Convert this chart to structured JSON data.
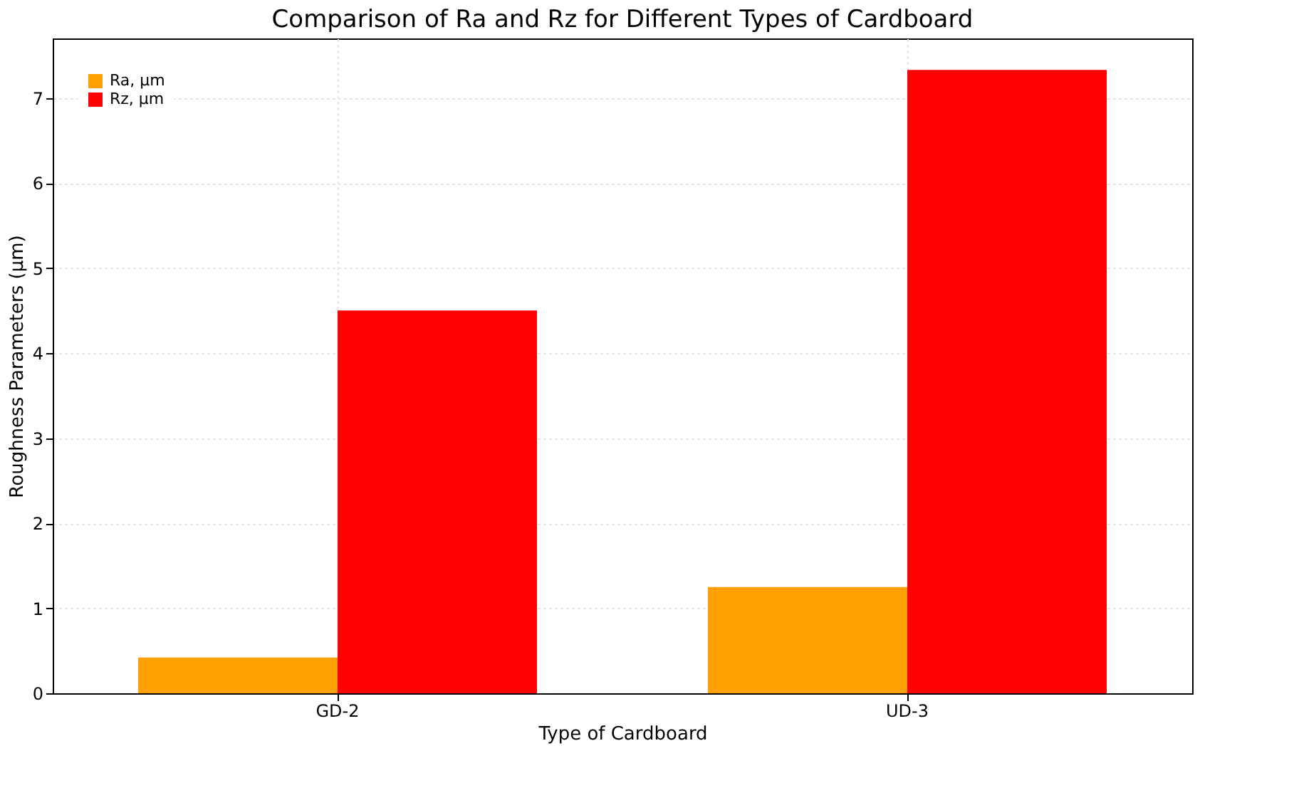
{
  "chart_data": {
    "type": "bar",
    "title": "Comparison of Ra and Rz for Different Types of Cardboard",
    "xlabel": "Type of Cardboard",
    "ylabel": "Roughness Parameters (µm)",
    "categories": [
      "GD-2",
      "UD-3"
    ],
    "series": [
      {
        "name": "Ra, µm",
        "color": "#ffa000",
        "values": [
          0.42,
          1.25
        ]
      },
      {
        "name": "Rz, µm",
        "color": "#ff0000",
        "values": [
          4.5,
          7.33
        ]
      }
    ],
    "ylim": [
      0,
      7.7
    ],
    "yticks": [
      0,
      1,
      2,
      3,
      4,
      5,
      6,
      7
    ],
    "grid": true,
    "legend": "top left"
  }
}
